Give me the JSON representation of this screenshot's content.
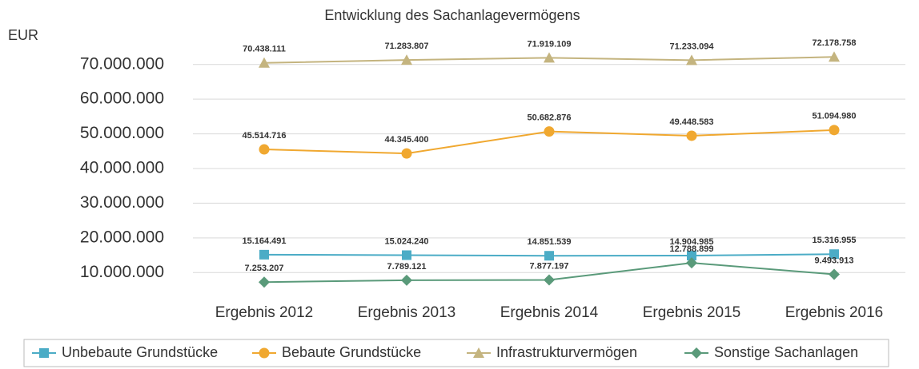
{
  "chart_data": {
    "type": "line",
    "title": "Entwicklung des Sachanlagevermögens",
    "y_label": "EUR",
    "categories": [
      "Ergebnis 2012",
      "Ergebnis 2013",
      "Ergebnis 2014",
      "Ergebnis 2015",
      "Ergebnis 2016"
    ],
    "series": [
      {
        "name": "Unbebaute Grundstücke",
        "color": "#4bacc6",
        "marker": "square",
        "values": [
          15164491,
          15024240,
          14851539,
          14904985,
          15316955
        ],
        "value_labels": [
          "15.164.491",
          "15.024.240",
          "14.851.539",
          "14.904.985",
          "15.316.955"
        ]
      },
      {
        "name": "Bebaute Grundstücke",
        "color": "#f0a830",
        "marker": "circle",
        "values": [
          45514716,
          44345400,
          50682876,
          49448583,
          51094980
        ],
        "value_labels": [
          "45.514.716",
          "44.345.400",
          "50.682.876",
          "49.448.583",
          "51.094.980"
        ]
      },
      {
        "name": "Infrastrukturvermögen",
        "color": "#c4b47f",
        "marker": "triangle",
        "values": [
          70438111,
          71283807,
          71919109,
          71233094,
          72178758
        ],
        "value_labels": [
          "70.438.111",
          "71.283.807",
          "71.919.109",
          "71.233.094",
          "72.178.758"
        ]
      },
      {
        "name": "Sonstige Sachanlagen",
        "color": "#5a9a7a",
        "marker": "diamond",
        "values": [
          7253207,
          7789121,
          7877197,
          12788899,
          9493913
        ],
        "value_labels": [
          "7.253.207",
          "7.789.121",
          "7.877.197",
          "12.788.899",
          "9.493.913"
        ]
      }
    ],
    "ylim": [
      5000000,
      75000000
    ],
    "yticks": [
      {
        "value": 10000000,
        "label": "10.000.000"
      },
      {
        "value": 20000000,
        "label": "20.000.000"
      },
      {
        "value": 30000000,
        "label": "30.000.000"
      },
      {
        "value": 40000000,
        "label": "40.000.000"
      },
      {
        "value": 50000000,
        "label": "50.000.000"
      },
      {
        "value": 60000000,
        "label": "60.000.000"
      },
      {
        "value": 70000000,
        "label": "70.000.000"
      }
    ],
    "grid": true,
    "legend": "bottom"
  }
}
